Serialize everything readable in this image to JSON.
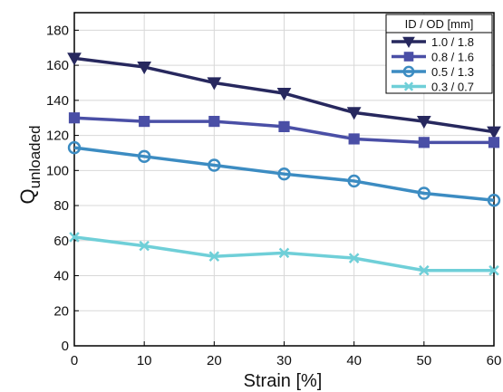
{
  "chart_data": {
    "type": "line",
    "xlabel": "Strain [%]",
    "ylabel_main": "Q",
    "ylabel_sub": "unloaded",
    "x": [
      0,
      10,
      20,
      30,
      40,
      50,
      60
    ],
    "xlim": [
      0,
      60
    ],
    "ylim": [
      0,
      190
    ],
    "xticks": [
      "0",
      "10",
      "20",
      "30",
      "40",
      "50",
      "60"
    ],
    "yticks": [
      "0",
      "20",
      "40",
      "60",
      "80",
      "100",
      "120",
      "140",
      "160",
      "180"
    ],
    "grid": true,
    "legend": {
      "title": "ID / OD [mm]",
      "placement": "top-right"
    },
    "series": [
      {
        "name": "1.0 / 1.8",
        "marker": "triangle-down",
        "color": "#27285e",
        "values": [
          164,
          159,
          150,
          144,
          133,
          128,
          122
        ]
      },
      {
        "name": "0.8 / 1.6",
        "marker": "square",
        "color": "#4a4fa6",
        "values": [
          130,
          128,
          128,
          125,
          118,
          116,
          116
        ]
      },
      {
        "name": "0.5 / 1.3",
        "marker": "circle",
        "color": "#3c8cc2",
        "values": [
          113,
          108,
          103,
          98,
          94,
          87,
          83
        ]
      },
      {
        "name": "0.3 / 0.7",
        "marker": "x",
        "color": "#6fcfd8",
        "values": [
          62,
          57,
          51,
          53,
          50,
          43,
          43
        ]
      }
    ]
  }
}
